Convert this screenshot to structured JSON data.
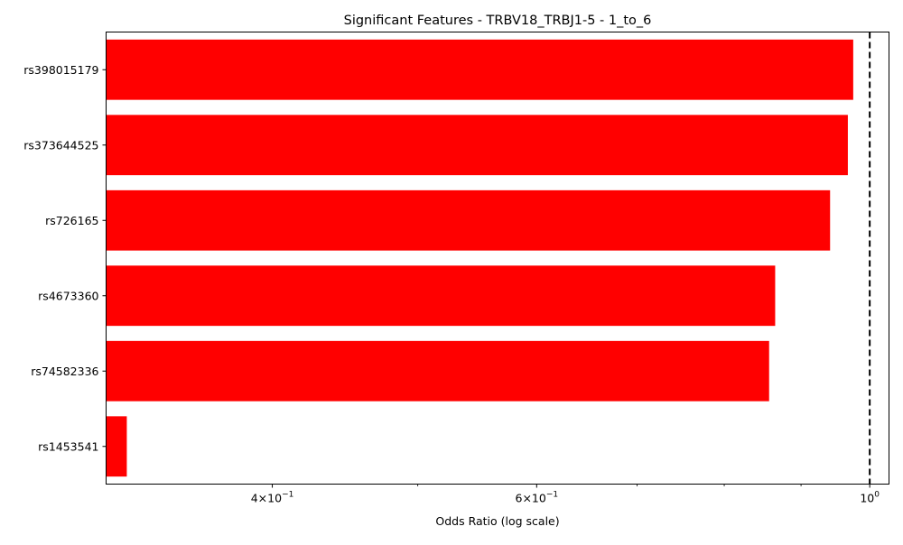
{
  "chart_data": {
    "type": "bar",
    "orientation": "horizontal",
    "title": "Significant Features - TRBV18_TRBJ1-5 - 1_to_6",
    "xlabel": "Odds Ratio (log scale)",
    "ylabel": "",
    "x_scale": "log",
    "xlim": [
      0.31,
      1.03
    ],
    "categories": [
      "rs398015179",
      "rs373644525",
      "rs726165",
      "rs4673360",
      "rs74582336",
      "rs1453541"
    ],
    "values": [
      0.975,
      0.967,
      0.941,
      0.865,
      0.857,
      0.32
    ],
    "bar_color": "#ff0000",
    "reference_line": {
      "x": 1.0,
      "style": "dashed",
      "color": "#000000"
    },
    "x_ticks": [
      {
        "value": 0.4,
        "mantissa": "4",
        "exponent": "−1"
      },
      {
        "value": 0.6,
        "mantissa": "6",
        "exponent": "−1"
      },
      {
        "value": 1.0,
        "mantissa": "10",
        "exponent": "0"
      }
    ],
    "grid": false,
    "legend": "none"
  }
}
